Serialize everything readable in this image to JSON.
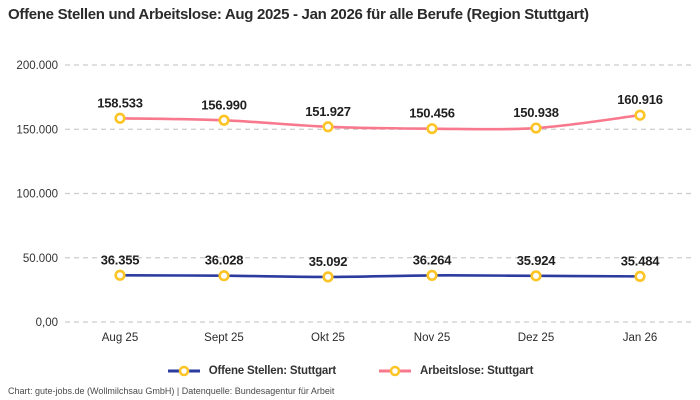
{
  "title": "Offene Stellen und Arbeitslose: Aug 2025 - Jan 2026 für alle Berufe (Region Stuttgart)",
  "footer": "Chart: gute-jobs.de (Wollmilchsau GmbH) | Datenquelle: Bundesagentur für Arbeit",
  "colors": {
    "grid": "#cccccc",
    "marker_ring": "#fcc425",
    "marker_fill": "#ffffff",
    "data_label": "#1f1f1f",
    "axis_text": "#333333"
  },
  "chart_data": {
    "type": "line",
    "title": "Offene Stellen und Arbeitslose: Aug 2025 - Jan 2026 für alle Berufe (Region Stuttgart)",
    "categories": [
      "Aug 25",
      "Sept 25",
      "Okt 25",
      "Nov 25",
      "Dez 25",
      "Jan 26"
    ],
    "series": [
      {
        "name": "Offene Stellen: Stuttgart",
        "color": "#2c3b9e",
        "values": [
          36355,
          36028,
          35092,
          36264,
          35924,
          35484
        ],
        "labels": [
          "36.355",
          "36.028",
          "35.092",
          "36.264",
          "35.924",
          "35.484"
        ]
      },
      {
        "name": "Arbeitslose: Stuttgart",
        "color": "#f8798d",
        "values": [
          158533,
          156990,
          151927,
          150456,
          150938,
          160916
        ],
        "labels": [
          "158.533",
          "156.990",
          "151.927",
          "150.456",
          "150.938",
          "160.916"
        ]
      }
    ],
    "y_ticks": [
      {
        "value": 0,
        "label": "0,00"
      },
      {
        "value": 50000,
        "label": "50.000"
      },
      {
        "value": 100000,
        "label": "100.000"
      },
      {
        "value": 150000,
        "label": "150.000"
      },
      {
        "value": 200000,
        "label": "200.000"
      }
    ],
    "ylim": [
      0,
      200000
    ],
    "grid": "horizontal-dashed",
    "legend_position": "bottom",
    "xlabel": "",
    "ylabel": ""
  }
}
